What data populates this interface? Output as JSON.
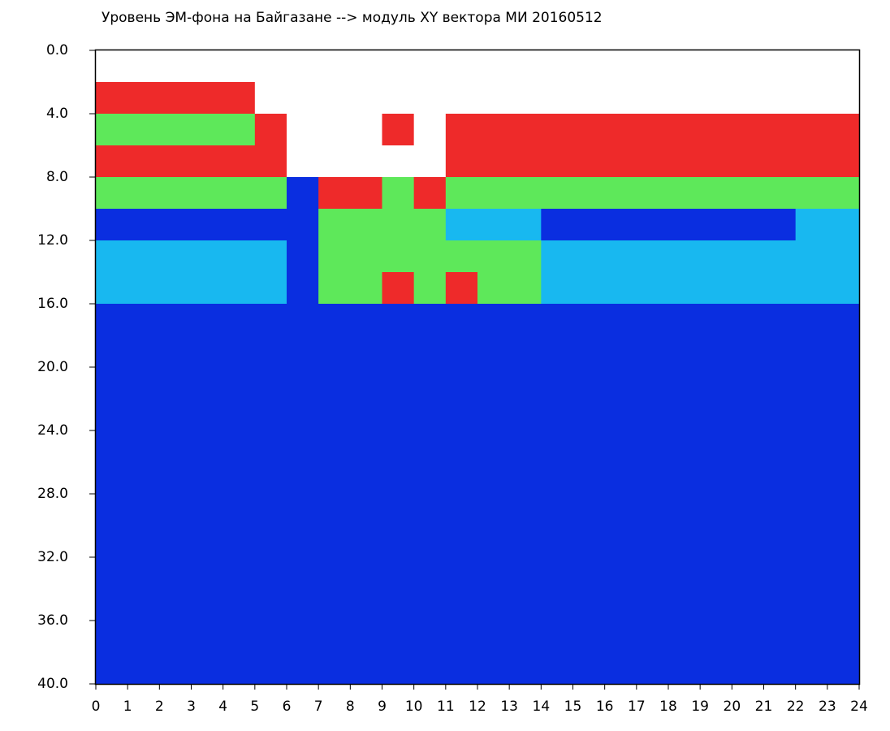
{
  "chart_data": {
    "type": "heatmap",
    "title": "Уровень ЭМ-фона на Байгазане  -->  модуль XY вектора МИ  20160512",
    "xlim": [
      0,
      24
    ],
    "xticks": [
      0,
      1,
      2,
      3,
      4,
      5,
      6,
      7,
      8,
      9,
      10,
      11,
      12,
      13,
      14,
      15,
      16,
      17,
      18,
      19,
      20,
      21,
      22,
      23,
      24
    ],
    "ylim": [
      0,
      40
    ],
    "y_inverted": true,
    "yticks": [
      {
        "value": 0,
        "label": "0.0"
      },
      {
        "value": 4,
        "label": "4.0"
      },
      {
        "value": 8,
        "label": "8.0"
      },
      {
        "value": 12,
        "label": "12.0"
      },
      {
        "value": 16,
        "label": "16.0"
      },
      {
        "value": 20,
        "label": "20.0"
      },
      {
        "value": 24,
        "label": "24.0"
      },
      {
        "value": 28,
        "label": "28.0"
      },
      {
        "value": 32,
        "label": "32.0"
      },
      {
        "value": 36,
        "label": "36.0"
      },
      {
        "value": 40,
        "label": "40.0"
      }
    ],
    "grid": false,
    "colorscale": [
      "#ffffff",
      "#0a2ee0",
      "#18b8f0",
      "#5ee85a",
      "#ee2a2a"
    ],
    "xbins": [
      0,
      1,
      2,
      3,
      4,
      5,
      6,
      7,
      8,
      9,
      10,
      11,
      12,
      13,
      14,
      15,
      16,
      17,
      18,
      19,
      20,
      21,
      22,
      23,
      24
    ],
    "ybins": [
      0,
      2,
      4,
      6,
      8,
      10,
      12,
      14,
      16,
      18,
      20,
      22,
      24,
      26,
      28,
      30,
      32,
      34,
      36,
      38,
      40
    ],
    "z": [
      [
        0,
        0,
        0,
        0,
        0,
        0,
        0,
        0,
        0,
        0,
        0,
        0,
        0,
        0,
        0,
        0,
        0,
        0,
        0,
        0,
        0,
        0,
        0,
        0
      ],
      [
        4,
        4,
        4,
        4,
        4,
        0,
        0,
        0,
        0,
        0,
        0,
        0,
        0,
        0,
        0,
        0,
        0,
        0,
        0,
        0,
        0,
        0,
        0,
        0
      ],
      [
        3,
        3,
        3,
        3,
        3,
        4,
        0,
        0,
        0,
        4,
        0,
        4,
        4,
        4,
        4,
        4,
        4,
        4,
        4,
        4,
        4,
        4,
        4,
        4
      ],
      [
        4,
        4,
        4,
        4,
        4,
        4,
        0,
        0,
        0,
        0,
        0,
        4,
        4,
        4,
        4,
        4,
        4,
        4,
        4,
        4,
        4,
        4,
        4,
        4
      ],
      [
        3,
        3,
        3,
        3,
        3,
        3,
        1,
        4,
        4,
        3,
        4,
        3,
        3,
        3,
        3,
        3,
        3,
        3,
        3,
        3,
        3,
        3,
        3,
        3
      ],
      [
        1,
        1,
        1,
        1,
        1,
        1,
        1,
        3,
        3,
        3,
        3,
        2,
        2,
        2,
        1,
        1,
        1,
        1,
        1,
        1,
        1,
        1,
        2,
        2
      ],
      [
        2,
        2,
        2,
        2,
        2,
        2,
        1,
        3,
        3,
        3,
        3,
        3,
        3,
        3,
        2,
        2,
        2,
        2,
        2,
        2,
        2,
        2,
        2,
        2
      ],
      [
        2,
        2,
        2,
        2,
        2,
        2,
        1,
        3,
        3,
        4,
        3,
        4,
        3,
        3,
        2,
        2,
        2,
        2,
        2,
        2,
        2,
        2,
        2,
        2
      ],
      [
        1,
        1,
        1,
        1,
        1,
        1,
        1,
        1,
        1,
        1,
        1,
        1,
        1,
        1,
        1,
        1,
        1,
        1,
        1,
        1,
        1,
        1,
        1,
        1
      ],
      [
        1,
        1,
        1,
        1,
        1,
        1,
        1,
        1,
        1,
        1,
        1,
        1,
        1,
        1,
        1,
        1,
        1,
        1,
        1,
        1,
        1,
        1,
        1,
        1
      ],
      [
        1,
        1,
        1,
        1,
        1,
        1,
        1,
        1,
        1,
        1,
        1,
        1,
        1,
        1,
        1,
        1,
        1,
        1,
        1,
        1,
        1,
        1,
        1,
        1
      ],
      [
        1,
        1,
        1,
        1,
        1,
        1,
        1,
        1,
        1,
        1,
        1,
        1,
        1,
        1,
        1,
        1,
        1,
        1,
        1,
        1,
        1,
        1,
        1,
        1
      ],
      [
        1,
        1,
        1,
        1,
        1,
        1,
        1,
        1,
        1,
        1,
        1,
        1,
        1,
        1,
        1,
        1,
        1,
        1,
        1,
        1,
        1,
        1,
        1,
        1
      ],
      [
        1,
        1,
        1,
        1,
        1,
        1,
        1,
        1,
        1,
        1,
        1,
        1,
        1,
        1,
        1,
        1,
        1,
        1,
        1,
        1,
        1,
        1,
        1,
        1
      ],
      [
        1,
        1,
        1,
        1,
        1,
        1,
        1,
        1,
        1,
        1,
        1,
        1,
        1,
        1,
        1,
        1,
        1,
        1,
        1,
        1,
        1,
        1,
        1,
        1
      ],
      [
        1,
        1,
        1,
        1,
        1,
        1,
        1,
        1,
        1,
        1,
        1,
        1,
        1,
        1,
        1,
        1,
        1,
        1,
        1,
        1,
        1,
        1,
        1,
        1
      ],
      [
        1,
        1,
        1,
        1,
        1,
        1,
        1,
        1,
        1,
        1,
        1,
        1,
        1,
        1,
        1,
        1,
        1,
        1,
        1,
        1,
        1,
        1,
        1,
        1
      ],
      [
        1,
        1,
        1,
        1,
        1,
        1,
        1,
        1,
        1,
        1,
        1,
        1,
        1,
        1,
        1,
        1,
        1,
        1,
        1,
        1,
        1,
        1,
        1,
        1
      ],
      [
        1,
        1,
        1,
        1,
        1,
        1,
        1,
        1,
        1,
        1,
        1,
        1,
        1,
        1,
        1,
        1,
        1,
        1,
        1,
        1,
        1,
        1,
        1,
        1
      ],
      [
        1,
        1,
        1,
        1,
        1,
        1,
        1,
        1,
        1,
        1,
        1,
        1,
        1,
        1,
        1,
        1,
        1,
        1,
        1,
        1,
        1,
        1,
        1,
        1
      ]
    ]
  }
}
